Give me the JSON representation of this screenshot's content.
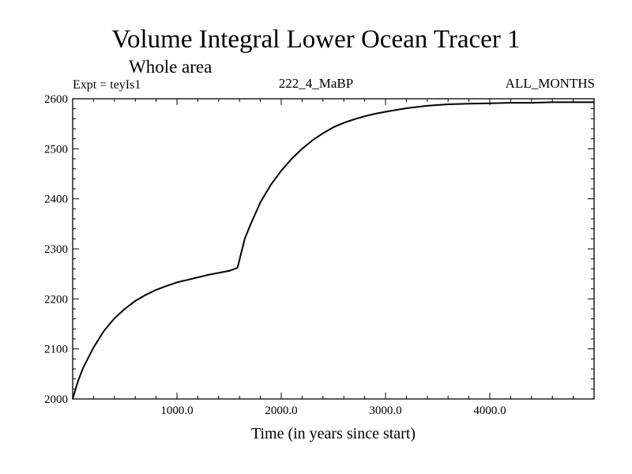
{
  "chart_data": {
    "type": "line",
    "title": "Volume Integral Lower Ocean Tracer 1",
    "subtitle": "Whole area",
    "experiment_label": "Expt = teyIs1",
    "run_label": "222_4_MaBP",
    "period_label": "ALL_MONTHS",
    "xlabel": "Time (in years since start)",
    "ylabel": "",
    "xlim": [
      0,
      5000
    ],
    "ylim": [
      2000,
      2600
    ],
    "x_ticks": [
      1000,
      2000,
      3000,
      4000
    ],
    "x_tick_labels": [
      "1000.0",
      "2000.0",
      "3000.0",
      "4000.0"
    ],
    "y_ticks": [
      2000,
      2100,
      2200,
      2300,
      2400,
      2500,
      2600
    ],
    "y_tick_labels": [
      "2000",
      "2100",
      "2200",
      "2300",
      "2400",
      "2500",
      "2600"
    ],
    "series": [
      {
        "name": "Volume Integral Lower Ocean Tracer 1",
        "color": "#000000",
        "x": [
          0,
          50,
          100,
          200,
          300,
          400,
          500,
          600,
          700,
          800,
          900,
          1000,
          1100,
          1200,
          1300,
          1400,
          1500,
          1580,
          1650,
          1700,
          1800,
          1900,
          2000,
          2100,
          2200,
          2300,
          2400,
          2500,
          2600,
          2700,
          2800,
          2900,
          3000,
          3200,
          3400,
          3600,
          3800,
          4000,
          4200,
          4400,
          4600,
          4800,
          5000
        ],
        "y": [
          2000,
          2035,
          2062,
          2103,
          2136,
          2161,
          2180,
          2196,
          2208,
          2218,
          2226,
          2233,
          2238,
          2243,
          2248,
          2252,
          2256,
          2262,
          2320,
          2346,
          2393,
          2428,
          2456,
          2480,
          2500,
          2517,
          2531,
          2543,
          2552,
          2559,
          2565,
          2570,
          2574,
          2581,
          2586,
          2589,
          2590,
          2591,
          2592,
          2592,
          2593,
          2593,
          2593
        ]
      }
    ]
  }
}
